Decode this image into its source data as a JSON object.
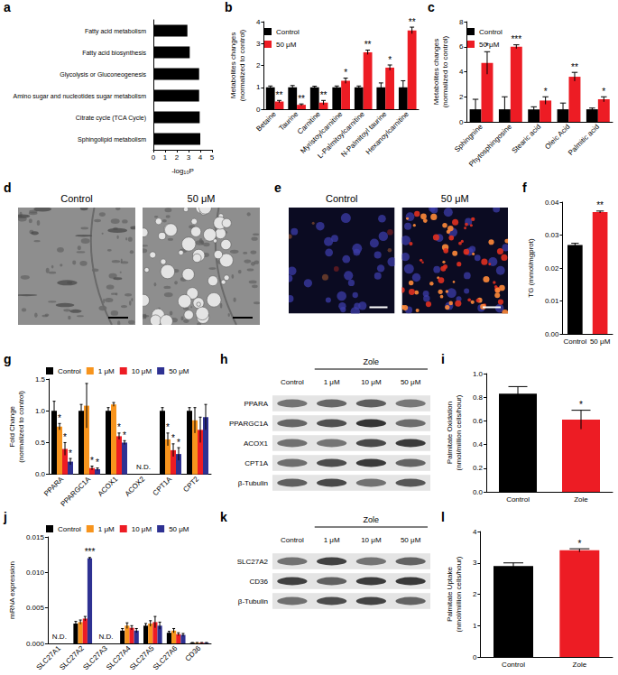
{
  "chart_data": [
    {
      "panel": "a",
      "type": "bar",
      "orientation": "horizontal",
      "categories": [
        "Fatty acid metabolism",
        "Fatty acid biosynthesis",
        "Glycolysis or Gluconeogenesis",
        "Amino sugar and nucleotides sugar metabolism",
        "Citrate cycle (TCA Cycle)",
        "Sphingolipid metabolism"
      ],
      "values": [
        2.9,
        3.1,
        3.9,
        3.9,
        3.95,
        4.0
      ],
      "color": "#000000",
      "xlabel": "-log₁₀P",
      "xlim": [
        0,
        5
      ],
      "xticks": [
        0,
        1,
        2,
        3,
        4,
        5
      ]
    },
    {
      "panel": "b",
      "type": "bar",
      "ylabel": "Metabolites changes\n(normalized to control)",
      "categories": [
        "Betaine",
        "Taurine",
        "Carnitine",
        "Myristoylcarnitine",
        "L-Palmitoylcarnitine",
        "N-Palmitoyl taurine",
        "Hexanoylcarnitine"
      ],
      "series": [
        {
          "name": "Control",
          "color": "#000000",
          "values": [
            1,
            1,
            1,
            1,
            1,
            1,
            1
          ],
          "errors": [
            0.06,
            0.08,
            0.05,
            0.06,
            0.06,
            0.2,
            0.3
          ]
        },
        {
          "name": "50 μM",
          "color": "#ed1c24",
          "values": [
            0.35,
            0.2,
            0.3,
            1.3,
            2.6,
            1.9,
            3.6
          ],
          "errors": [
            0.05,
            0.04,
            0.1,
            0.12,
            0.1,
            0.12,
            0.15
          ],
          "stars": [
            "**",
            "**",
            "**",
            "*",
            "**",
            "*",
            "**"
          ]
        }
      ],
      "ylim": [
        0,
        4
      ],
      "yticks": [
        0,
        1,
        2,
        3,
        4
      ],
      "legend": "upper left"
    },
    {
      "panel": "c",
      "type": "bar",
      "ylabel": "Metabolites changes\n(normalized to control)",
      "categories": [
        "Sphingnine",
        "Phytosphingosine",
        "Stearic acid",
        "Oleic Acid",
        "Palmitic acid"
      ],
      "series": [
        {
          "name": "Control",
          "color": "#000000",
          "values": [
            1,
            1,
            1,
            1,
            1
          ],
          "errors": [
            0.8,
            1.0,
            0.2,
            0.5,
            0.1
          ]
        },
        {
          "name": "50 μM",
          "color": "#ed1c24",
          "values": [
            4.7,
            6.0,
            1.7,
            3.6,
            1.8
          ],
          "errors": [
            0.9,
            0.15,
            0.3,
            0.35,
            0.2
          ],
          "stars": [
            "*",
            "***",
            "*",
            "**",
            "*"
          ]
        }
      ],
      "ylim": [
        0,
        8
      ],
      "yticks": [
        0,
        2,
        4,
        6,
        8
      ],
      "legend": "upper left"
    },
    {
      "panel": "d",
      "type": "micrograph",
      "images": [
        "Control",
        "50 μM"
      ]
    },
    {
      "panel": "e",
      "type": "fluorescence",
      "images": [
        "Control",
        "50 μM"
      ]
    },
    {
      "panel": "f",
      "type": "bar",
      "ylabel": "TG (mmol/mgprot)",
      "categories": [
        "Control",
        "50 μM"
      ],
      "values": [
        0.027,
        0.037
      ],
      "errors": [
        0.0005,
        0.0003
      ],
      "stars": [
        null,
        "**"
      ],
      "colors": [
        "#000000",
        "#ed1c24"
      ],
      "ylim": [
        0,
        0.04
      ],
      "yticks": [
        {
          "value": 0,
          "label": "0.00"
        },
        0.01,
        0.02,
        0.03,
        0.04
      ]
    },
    {
      "panel": "g",
      "type": "bar",
      "ylabel": "Fold Change\n(normalized to control)",
      "categories": [
        "PPARA",
        "PPARGC1A",
        "ACOX1",
        "ACOX2",
        "CPT1A",
        "CPT2"
      ],
      "series": [
        {
          "name": "Control",
          "color": "#000000",
          "values": [
            1,
            1,
            1,
            null,
            1,
            1
          ],
          "errors": [
            0.15,
            0.1,
            0.05,
            null,
            0.05,
            0.05
          ]
        },
        {
          "name": "1 μM",
          "color": "#f7941d",
          "values": [
            0.75,
            1.08,
            1.1,
            null,
            0.55,
            0.85
          ],
          "errors": [
            0.05,
            0.35,
            0.03,
            null,
            0.1,
            0.2
          ],
          "stars": [
            "*",
            null,
            null,
            null,
            "*",
            null
          ]
        },
        {
          "name": "10 μM",
          "color": "#ed1c24",
          "values": [
            0.4,
            0.1,
            0.6,
            null,
            0.38,
            0.7
          ],
          "errors": [
            0.1,
            0.03,
            0.05,
            null,
            0.1,
            0.2
          ],
          "stars": [
            "*",
            "*",
            "*",
            null,
            "*",
            null
          ]
        },
        {
          "name": "50 μM",
          "color": "#2e3192",
          "values": [
            0.2,
            0.08,
            0.5,
            null,
            0.32,
            0.9
          ],
          "errors": [
            0.05,
            0.02,
            0.03,
            null,
            0.1,
            0.2
          ],
          "stars": [
            "*",
            "*",
            "*",
            null,
            "*",
            null
          ]
        }
      ],
      "notes": [
        null,
        null,
        null,
        "N.D.",
        null,
        null
      ],
      "ylim": [
        0,
        1.5
      ],
      "yticks": [
        {
          "value": 0,
          "label": "0.0"
        },
        0.5,
        {
          "value": 1,
          "label": "1.0"
        },
        1.5
      ],
      "legend": "top"
    },
    {
      "panel": "h",
      "type": "blot",
      "treatment": "Zole",
      "lanes": [
        "Control",
        "1 μM",
        "10 μM",
        "50 μM"
      ],
      "proteins": [
        "PPARA",
        "PPARGC1A",
        "ACOX1",
        "CPT1A",
        "β-Tubulin"
      ]
    },
    {
      "panel": "i",
      "type": "bar",
      "ylabel": "Palmitate Oxidation\n(nmol/million cells/hour)",
      "categories": [
        "Control",
        "Zole"
      ],
      "values": [
        0.83,
        0.61
      ],
      "errors": [
        0.06,
        0.08
      ],
      "stars": [
        null,
        "*"
      ],
      "colors": [
        "#000000",
        "#ed1c24"
      ],
      "ylim": [
        0,
        1
      ],
      "yticks": [
        {
          "value": 0,
          "label": "0.0"
        },
        0.2,
        0.4,
        0.6,
        0.8,
        {
          "value": 1,
          "label": "1.0"
        }
      ]
    },
    {
      "panel": "j",
      "type": "bar",
      "ylabel": "mRNA expression",
      "categories": [
        "SLC27A1",
        "SLC27A2",
        "SLC27A3",
        "SLC27A4",
        "SLC27A5",
        "SLC27A6",
        "CD36"
      ],
      "series": [
        {
          "name": "Control",
          "color": "#000000",
          "values": [
            null,
            0.0028,
            null,
            0.0018,
            0.0025,
            0.0015,
            0.0001
          ],
          "errors": [
            null,
            0.0003,
            null,
            0.0003,
            0.0003,
            0.0002,
            3e-05
          ]
        },
        {
          "name": "1 μM",
          "color": "#f7941d",
          "values": [
            null,
            0.003,
            null,
            0.0025,
            0.0028,
            0.0018,
            0.0001
          ],
          "errors": [
            null,
            0.0003,
            null,
            0.0004,
            0.0004,
            0.0003,
            3e-05
          ]
        },
        {
          "name": "10 μM",
          "color": "#ed1c24",
          "values": [
            null,
            0.0035,
            null,
            0.0022,
            0.003,
            0.0013,
            0.0001
          ],
          "errors": [
            null,
            0.0003,
            null,
            0.0003,
            0.0008,
            0.0002,
            3e-05
          ]
        },
        {
          "name": "50 μM",
          "color": "#2e3192",
          "values": [
            null,
            0.012,
            null,
            0.0018,
            0.0025,
            0.0012,
            0.0001
          ],
          "errors": [
            null,
            0.0001,
            null,
            0.0003,
            0.0005,
            0.0002,
            3e-05
          ],
          "stars": [
            null,
            "***",
            null,
            null,
            null,
            null,
            null
          ]
        }
      ],
      "notes": [
        "N.D.",
        null,
        "N.D.",
        null,
        null,
        null,
        null
      ],
      "ylim": [
        0,
        0.015
      ],
      "yticks": [
        {
          "value": 0,
          "label": "0.000"
        },
        0.005,
        {
          "value": 0.01,
          "label": "0.010"
        },
        0.015
      ],
      "legend": "top"
    },
    {
      "panel": "k",
      "type": "blot",
      "treatment": "Zole",
      "lanes": [
        "Control",
        "1 μM",
        "10 μM",
        "50 μM"
      ],
      "proteins": [
        "SLC27A2",
        "CD36",
        "β-Tubulin"
      ]
    },
    {
      "panel": "l",
      "type": "bar",
      "ylabel": "Palmitate Uptake\n(nmol/million cells/hour)",
      "categories": [
        "Control",
        "Zole"
      ],
      "values": [
        2.9,
        3.4
      ],
      "errors": [
        0.1,
        0.05
      ],
      "stars": [
        null,
        "*"
      ],
      "colors": [
        "#000000",
        "#ed1c24"
      ],
      "ylim": [
        0,
        4
      ],
      "yticks": [
        0,
        1,
        2,
        3,
        4
      ]
    }
  ]
}
